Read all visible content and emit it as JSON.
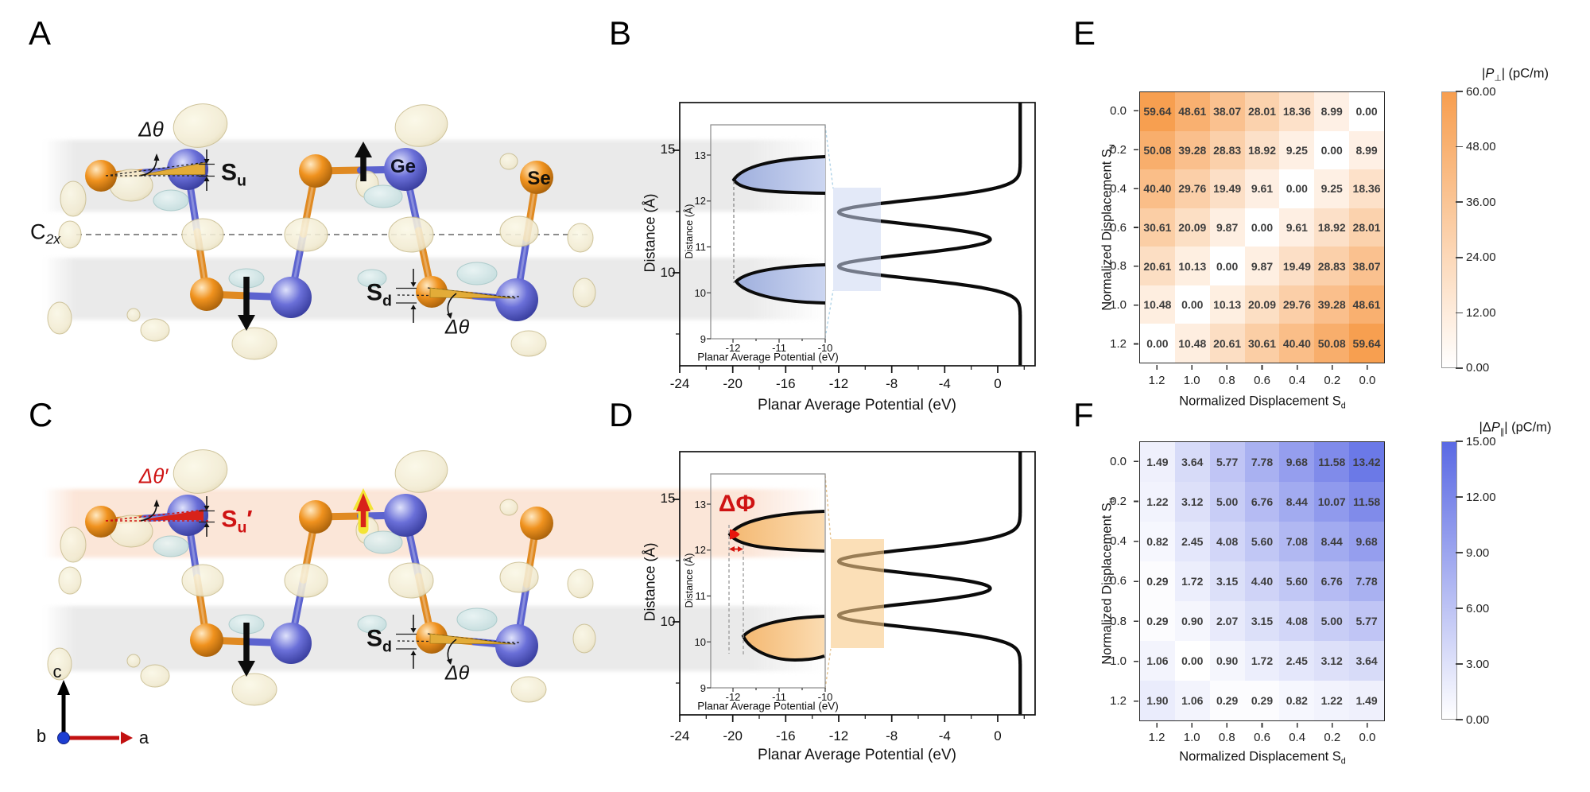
{
  "figure": {
    "panel_labels": {
      "a": "A",
      "b": "B",
      "c": "C",
      "d": "D",
      "e": "E",
      "f": "F"
    }
  },
  "structure_a": {
    "delta_theta_upper": "Δθ",
    "su_base": "S",
    "su_sub": "u",
    "ge": "Ge",
    "se": "Se",
    "c2x_base": "C",
    "c2x_sub": "2x",
    "sd_base": "S",
    "sd_sub": "d",
    "delta_theta_lower": "Δθ"
  },
  "structure_c": {
    "delta_theta_prime": "Δθ′",
    "su_base": "S",
    "su_sub": "u",
    "su_prime": "′",
    "sd_base": "S",
    "sd_sub": "d",
    "delta_theta_lower": "Δθ",
    "axis_c": "c",
    "axis_b": "b",
    "axis_a": "a"
  },
  "heatmap_e_titles": {
    "xtitle": "Normalized Displacement S",
    "xtitle_sub": "d",
    "ytitle": "Normalized Displacement S",
    "ytitle_sub": "u",
    "cb_pre": "|",
    "cb_sym": "P",
    "cb_sub": "⊥",
    "cb_post": "| (pC/m)"
  },
  "heatmap_f_titles": {
    "xtitle": "Normalized Displacement S",
    "xtitle_sub": "d",
    "ytitle": "Normalized Displacement S",
    "ytitle_sub": "u",
    "cb_pre": "|Δ",
    "cb_sym": "P",
    "cb_sub": "∥",
    "cb_post": "| (pC/m)"
  },
  "chart_data": [
    {
      "panel": "B",
      "type": "line",
      "xlabel": "Planar Average Potential (eV)",
      "ylabel": "Distance (Å)",
      "x_tick_labels": [
        "-24",
        "-20",
        "-16",
        "-12",
        "-8",
        "-4",
        "0"
      ],
      "y_tick_labels": [
        "15",
        "10"
      ],
      "x_range_eV": [
        -24,
        2.8
      ],
      "y_range_A": [
        6.2,
        16.95
      ],
      "curve_features": {
        "vacuum_level_eV": 1.7,
        "well_minimum_eV": -12.0,
        "well_centers_A": [
          12.47,
          10.26
        ],
        "well_width_A": 0.7,
        "middle_peak_eV": -0.6,
        "middle_peak_A": 11.37
      },
      "inset": {
        "xlabel": "Planar Average Potential (eV)",
        "ylabel": "Distance (Å)",
        "x_tick_labels": [
          "-12",
          "-11",
          "-10"
        ],
        "y_tick_labels": [
          "13",
          "12",
          "11",
          "10",
          "9"
        ],
        "pocket_vertices_eV_A": [
          [
            -12.0,
            12.48
          ],
          [
            -11.95,
            10.25
          ]
        ]
      }
    },
    {
      "panel": "D",
      "type": "line",
      "xlabel": "Planar Average Potential (eV)",
      "ylabel": "Distance (Å)",
      "x_tick_labels": [
        "-24",
        "-20",
        "-16",
        "-12",
        "-8",
        "-4",
        "0"
      ],
      "y_tick_labels": [
        "15",
        "10"
      ],
      "x_range_eV": [
        -24,
        2.8
      ],
      "y_range_A": [
        6.2,
        16.95
      ],
      "curve_features": {
        "vacuum_level_eV": 1.7,
        "well_minimum_eV": -12.0,
        "well_centers_A": [
          12.47,
          10.26
        ],
        "well_width_A": 0.7,
        "middle_peak_eV": -0.6,
        "middle_peak_A": 11.37
      },
      "inset": {
        "xlabel": "Planar Average Potential (eV)",
        "ylabel": "Distance (Å)",
        "x_tick_labels": [
          "-12",
          "-11",
          "-10"
        ],
        "y_tick_labels": [
          "13",
          "12",
          "11",
          "10",
          "9"
        ],
        "pocket_vertices_eV_A": [
          [
            -12.07,
            12.36
          ],
          [
            -11.78,
            10.16
          ]
        ]
      },
      "annotations": {
        "delta_phi_label": "ΔΦ",
        "delta_phi_eV": 0.29
      }
    },
    {
      "panel": "E",
      "type": "heatmap",
      "x_axis_title": "Normalized Displacement Sd",
      "y_axis_title": "Normalized Displacement Su",
      "col_labels": [
        "1.2",
        "1.0",
        "0.8",
        "0.6",
        "0.4",
        "0.2",
        "0.0"
      ],
      "row_labels": [
        "0.0",
        "0.2",
        "0.4",
        "0.6",
        "0.8",
        "1.0",
        "1.2"
      ],
      "values": [
        [
          59.64,
          48.61,
          38.07,
          28.01,
          18.36,
          8.99,
          0.0
        ],
        [
          50.08,
          39.28,
          28.83,
          18.92,
          9.25,
          0.0,
          8.99
        ],
        [
          40.4,
          29.76,
          19.49,
          9.61,
          0.0,
          9.25,
          18.36
        ],
        [
          30.61,
          20.09,
          9.87,
          0.0,
          9.61,
          18.92,
          28.01
        ],
        [
          20.61,
          10.13,
          0.0,
          9.87,
          19.49,
          28.83,
          38.07
        ],
        [
          10.48,
          0.0,
          10.13,
          20.09,
          29.76,
          39.28,
          48.61
        ],
        [
          0.0,
          10.48,
          20.61,
          30.61,
          40.4,
          50.08,
          59.64
        ]
      ],
      "scale": {
        "min": 0,
        "max": 60,
        "max_color": "#f79e4f",
        "title": "|P⊥| (pC/m)",
        "tick_labels": [
          "60.00",
          "48.00",
          "36.00",
          "24.00",
          "12.00",
          "0.00"
        ]
      }
    },
    {
      "panel": "F",
      "type": "heatmap",
      "x_axis_title": "Normalized Displacement Sd",
      "y_axis_title": "Normalized Displacement Su",
      "col_labels": [
        "1.2",
        "1.0",
        "0.8",
        "0.6",
        "0.4",
        "0.2",
        "0.0"
      ],
      "row_labels": [
        "0.0",
        "0.2",
        "0.4",
        "0.6",
        "0.8",
        "1.0",
        "1.2"
      ],
      "values": [
        [
          1.49,
          3.64,
          5.77,
          7.78,
          9.68,
          11.58,
          13.42
        ],
        [
          1.22,
          3.12,
          5.0,
          6.76,
          8.44,
          10.07,
          11.58
        ],
        [
          0.82,
          2.45,
          4.08,
          5.6,
          7.08,
          8.44,
          9.68
        ],
        [
          0.29,
          1.72,
          3.15,
          4.4,
          5.6,
          6.76,
          7.78
        ],
        [
          0.29,
          0.9,
          2.07,
          3.15,
          4.08,
          5.0,
          5.77
        ],
        [
          1.06,
          0.0,
          0.9,
          1.72,
          2.45,
          3.12,
          3.64
        ],
        [
          1.9,
          1.06,
          0.29,
          0.29,
          0.82,
          1.22,
          1.49
        ]
      ],
      "scale": {
        "min": 0,
        "max": 15,
        "max_color": "#5a69e4",
        "title": "|ΔP∥| (pC/m)",
        "tick_labels": [
          "15.00",
          "12.00",
          "9.00",
          "6.00",
          "3.00",
          "0.00"
        ]
      }
    }
  ]
}
